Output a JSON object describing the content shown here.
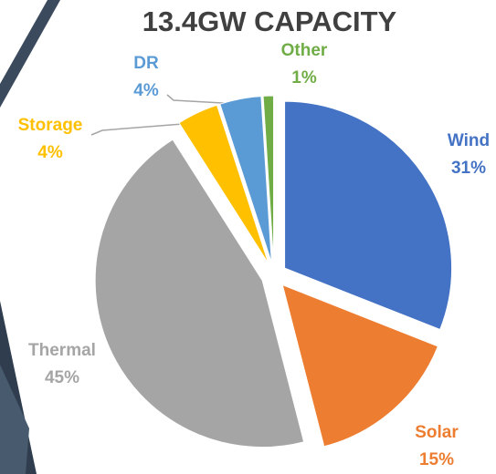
{
  "chart_data": {
    "type": "pie",
    "title": "13.4GW CAPACITY",
    "categories": [
      "Wind",
      "Solar",
      "Thermal",
      "Storage",
      "DR",
      "Other"
    ],
    "values": [
      31,
      15,
      45,
      4,
      4,
      1
    ],
    "value_labels": [
      "31%",
      "15%",
      "45%",
      "4%",
      "4%",
      "1%"
    ],
    "colors": [
      "#4472c4",
      "#ed7d31",
      "#a5a5a5",
      "#ffc000",
      "#5b9bd5",
      "#70ad47"
    ]
  }
}
